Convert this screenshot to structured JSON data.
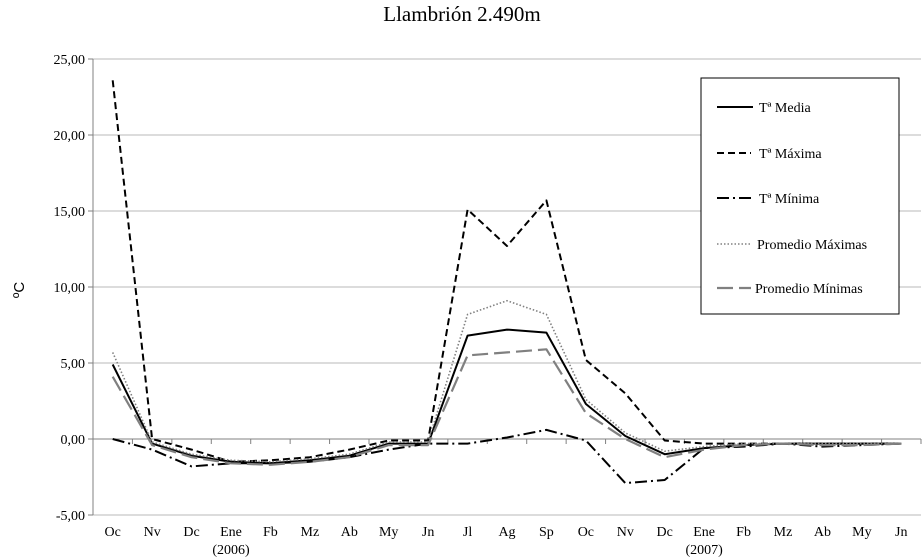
{
  "chart_data": {
    "type": "line",
    "title": "Llambrión 2.490m",
    "xlabel": "",
    "ylabel": "ºC",
    "ylim": [
      -5,
      25
    ],
    "yticks": [
      "-5,00",
      "0,00",
      "5,00",
      "10,00",
      "15,00",
      "20,00",
      "25,00"
    ],
    "categories": [
      "Oc",
      "Nv",
      "Dc",
      "Ene",
      "Fb",
      "Mz",
      "Ab",
      "My",
      "Jn",
      "Jl",
      "Ag",
      "Sp",
      "Oc",
      "Nv",
      "Dc",
      "Ene",
      "Fb",
      "Mz",
      "Ab",
      "My",
      "Jn"
    ],
    "year_labels": [
      {
        "index": 3,
        "label": "(2006)"
      },
      {
        "index": 15,
        "label": "(2007)"
      }
    ],
    "legend_position": "top-right",
    "series": [
      {
        "name": "Tª Media",
        "style": "solid",
        "color": "#000000",
        "values": [
          4.9,
          -0.3,
          -1.1,
          -1.5,
          -1.6,
          -1.4,
          -1.1,
          -0.3,
          -0.3,
          6.8,
          7.2,
          7.0,
          2.3,
          0.2,
          -1.0,
          -0.6,
          -0.4,
          -0.3,
          -0.3,
          -0.3,
          -0.3
        ]
      },
      {
        "name": "Tª Máxima",
        "style": "dashed",
        "color": "#000000",
        "values": [
          23.6,
          0.0,
          -0.7,
          -1.5,
          -1.4,
          -1.2,
          -0.7,
          -0.1,
          -0.1,
          15.1,
          12.7,
          15.7,
          5.2,
          3.0,
          -0.1,
          -0.3,
          -0.3,
          -0.3,
          -0.3,
          -0.3,
          -0.3
        ]
      },
      {
        "name": "Tª Mínima",
        "style": "dashdot",
        "color": "#000000",
        "values": [
          0.0,
          -0.7,
          -1.8,
          -1.6,
          -1.6,
          -1.5,
          -1.2,
          -0.7,
          -0.3,
          -0.3,
          0.1,
          0.6,
          -0.1,
          -2.9,
          -2.7,
          -0.6,
          -0.5,
          -0.3,
          -0.5,
          -0.4,
          -0.3
        ]
      },
      {
        "name": "Promedio Máximas",
        "style": "dotted",
        "color": "#808080",
        "values": [
          5.7,
          -0.2,
          -1.0,
          -1.4,
          -1.5,
          -1.3,
          -1.0,
          -0.2,
          -0.2,
          8.2,
          9.1,
          8.2,
          2.6,
          0.4,
          -0.8,
          -0.5,
          -0.3,
          -0.3,
          -0.3,
          -0.3,
          -0.3
        ]
      },
      {
        "name": "Promedio Mínimas",
        "style": "longdash",
        "color": "#808080",
        "values": [
          4.1,
          -0.4,
          -1.2,
          -1.6,
          -1.7,
          -1.5,
          -1.2,
          -0.4,
          -0.4,
          5.5,
          5.7,
          5.9,
          1.7,
          0.0,
          -1.2,
          -0.7,
          -0.4,
          -0.3,
          -0.4,
          -0.4,
          -0.3
        ]
      }
    ]
  }
}
